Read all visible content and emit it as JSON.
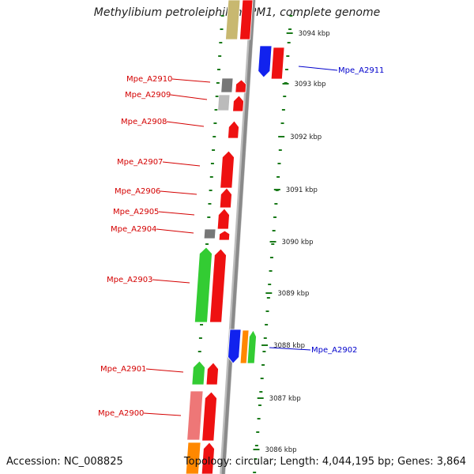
{
  "title": "Methylibium petroleiphilum PM1, complete genome",
  "accession": "Accession: NC_008825",
  "topology": "Topology: circular; Length: 4,044,195 bp; Genes: 3,864",
  "colors": {
    "backbone": "#8a8a8a",
    "tick": "#1a7a1a",
    "label_red": "#d40000",
    "label_blue": "#0000cc",
    "gene_red": "#ee1111",
    "gene_green": "#33cc33",
    "gene_blue": "#1122ee",
    "gene_gray": "#777777",
    "gene_lightgray": "#bbbbbb",
    "gene_pink": "#ee7777",
    "gene_orange": "#ff8800",
    "gene_olive": "#c8b870"
  },
  "scale_labels": [
    "3094 kbp",
    "3093 kbp",
    "3092 kbp",
    "3091 kbp",
    "3090 kbp",
    "3089 kbp",
    "3088 kbp",
    "3087 kbp",
    "3086 kbp"
  ],
  "gene_labels": [
    {
      "text": "Mpe_A2911",
      "side": "right",
      "color": "blue"
    },
    {
      "text": "Mpe_A2910",
      "side": "left",
      "color": "red"
    },
    {
      "text": "Mpe_A2909",
      "side": "left",
      "color": "red"
    },
    {
      "text": "Mpe_A2908",
      "side": "left",
      "color": "red"
    },
    {
      "text": "Mpe_A2907",
      "side": "left",
      "color": "red"
    },
    {
      "text": "Mpe_A2906",
      "side": "left",
      "color": "red"
    },
    {
      "text": "Mpe_A2905",
      "side": "left",
      "color": "red"
    },
    {
      "text": "Mpe_A2904",
      "side": "left",
      "color": "red"
    },
    {
      "text": "Mpe_A2903",
      "side": "left",
      "color": "red"
    },
    {
      "text": "Mpe_A2902",
      "side": "right",
      "color": "blue"
    },
    {
      "text": "Mpe_A2901",
      "side": "left",
      "color": "red"
    },
    {
      "text": "Mpe_A2900",
      "side": "left",
      "color": "red"
    }
  ]
}
